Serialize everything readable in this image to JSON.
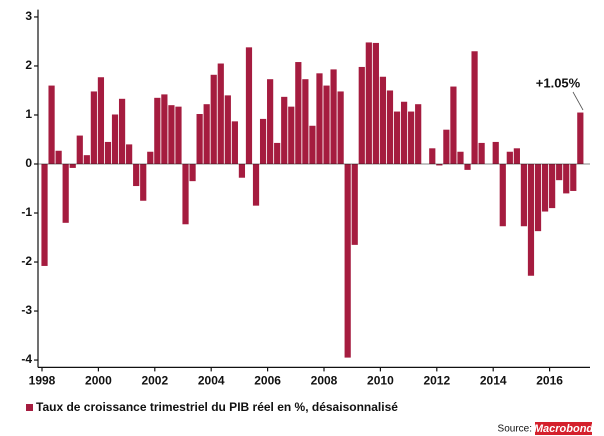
{
  "chart_data": {
    "type": "bar",
    "categories": [
      "1998",
      null,
      null,
      null,
      null,
      null,
      null,
      null,
      "2000",
      null,
      null,
      null,
      null,
      null,
      null,
      null,
      "2002",
      null,
      null,
      null,
      null,
      null,
      null,
      null,
      "2004",
      null,
      null,
      null,
      null,
      null,
      null,
      null,
      "2006",
      null,
      null,
      null,
      null,
      null,
      null,
      null,
      "2008",
      null,
      null,
      null,
      null,
      null,
      null,
      null,
      "2010",
      null,
      null,
      null,
      null,
      null,
      null,
      null,
      "2012",
      null,
      null,
      null,
      null,
      null,
      null,
      null,
      "2014",
      null,
      null,
      null,
      null,
      null,
      null,
      null,
      "2016",
      null,
      null,
      null,
      null
    ],
    "series": [
      {
        "name": "Taux de croissance trimestriel du PIB réel en %, désaisonnalisé",
        "color": "#a51c3f",
        "values": [
          -2.08,
          1.6,
          0.27,
          -1.2,
          -0.08,
          0.58,
          0.18,
          1.48,
          1.77,
          0.45,
          1.01,
          1.33,
          0.4,
          -0.45,
          -0.75,
          0.25,
          1.35,
          1.42,
          1.2,
          1.17,
          -1.23,
          -0.35,
          1.02,
          1.22,
          1.82,
          2.05,
          1.4,
          0.87,
          -0.28,
          2.38,
          -0.85,
          0.92,
          1.73,
          0.43,
          1.37,
          1.17,
          2.08,
          1.73,
          0.78,
          1.85,
          1.6,
          1.93,
          1.48,
          -3.95,
          -1.65,
          1.98,
          2.48,
          2.47,
          1.78,
          1.5,
          1.07,
          1.27,
          1.07,
          1.22,
          0,
          0.32,
          -0.03,
          0.7,
          1.58,
          0.25,
          -0.12,
          2.3,
          0.43,
          0,
          0.45,
          -1.27,
          0.25,
          0.32,
          -1.27,
          -2.28,
          -1.37,
          -0.97,
          -0.9,
          -0.33,
          -0.6,
          -0.55,
          1.05
        ]
      }
    ],
    "ylim": [
      -4.15,
      3.15
    ],
    "yticks": [
      -4,
      -3,
      -2,
      -1,
      0,
      1,
      2,
      3
    ],
    "grid": false,
    "annotation": "+1.05%",
    "source": "Source:",
    "brand": "Macrobond"
  }
}
